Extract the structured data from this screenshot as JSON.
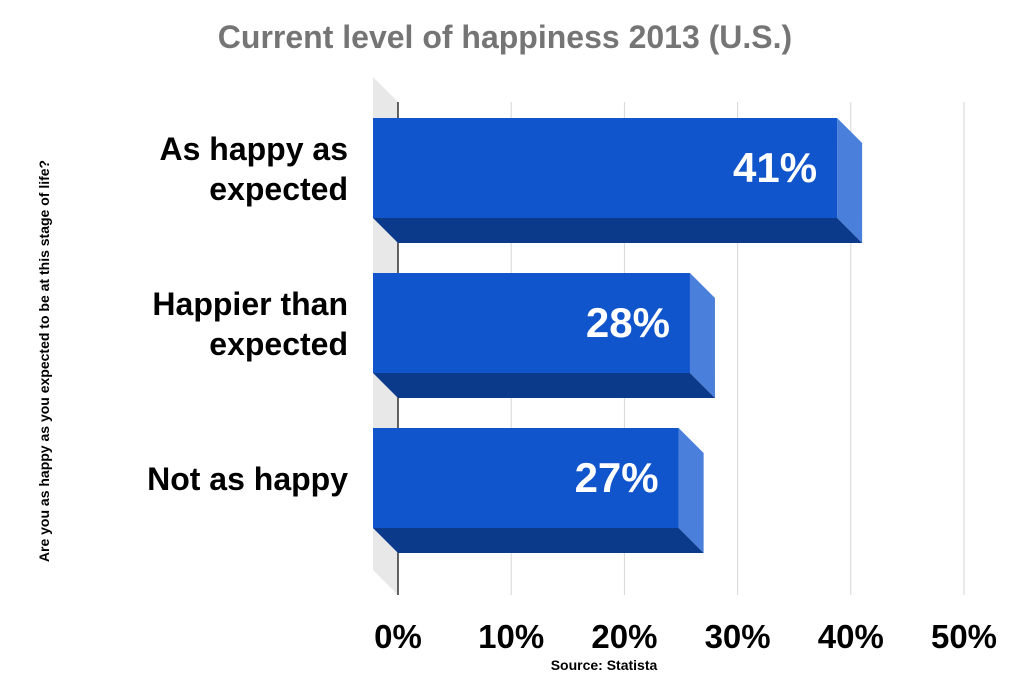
{
  "chart_data": {
    "type": "bar",
    "orientation": "horizontal",
    "title": "Current level of happiness 2013 (U.S.)",
    "ylabel": "Are you as happy as you expected to be at this stage of life?",
    "xlabel": "",
    "source": "Source: Statista",
    "categories": [
      [
        "As happy as",
        "expected"
      ],
      [
        "Happier than",
        "expected"
      ],
      [
        "Not as happy"
      ]
    ],
    "values": [
      41,
      28,
      27
    ],
    "value_labels": [
      "41%",
      "28%",
      "27%"
    ],
    "xlim": [
      0,
      50
    ],
    "x_ticks": [
      0,
      10,
      20,
      30,
      40,
      50
    ],
    "x_tick_labels": [
      "0%",
      "10%",
      "20%",
      "30%",
      "40%",
      "50%"
    ],
    "grid": true,
    "legend": "none",
    "colors": {
      "bar_front": "#1155cc",
      "bar_side": "#4a7fdb",
      "bar_bottom": "#0b3a8a",
      "floor": "#e8e8e8",
      "grid": "#d6d6d6",
      "title": "#757575"
    }
  }
}
